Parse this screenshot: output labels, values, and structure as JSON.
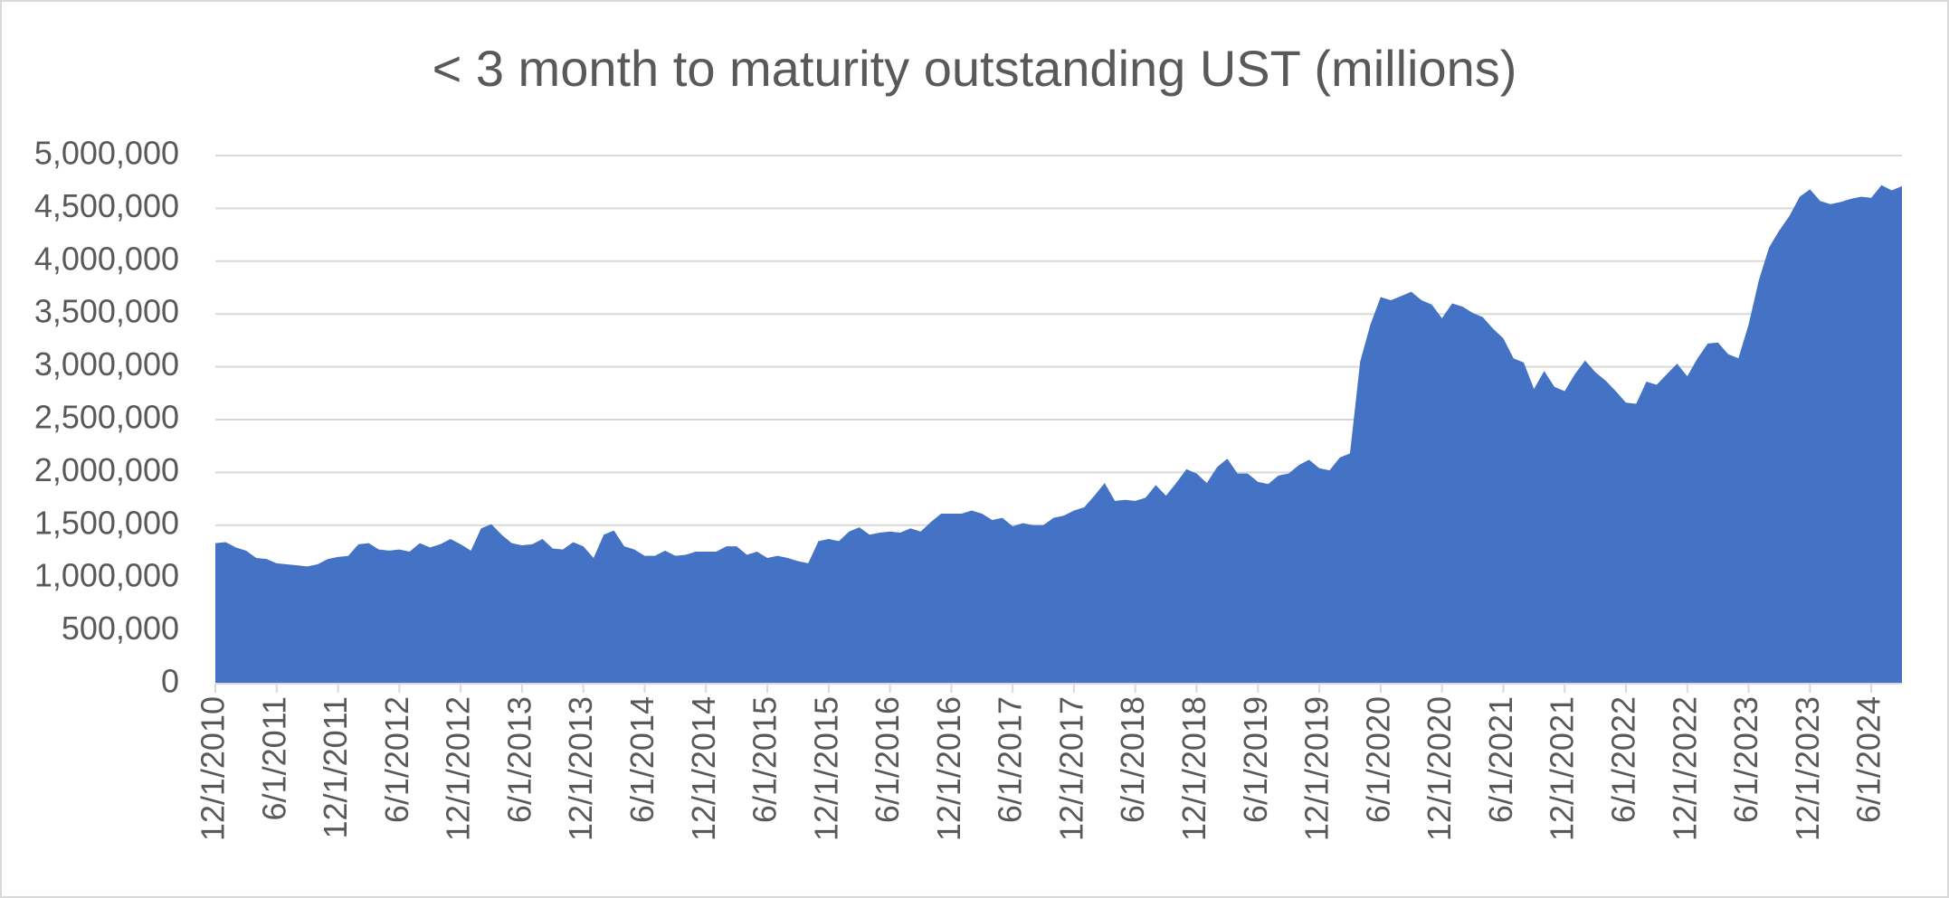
{
  "chart_data": {
    "type": "area",
    "title": "< 3 month to maturity outstanding UST (millions)",
    "color": "#4472c4",
    "grid": true,
    "ylim": [
      0,
      5000000
    ],
    "yticks": [
      0,
      {
        "value": 500000,
        "label": "500,000"
      },
      {
        "value": 1000000,
        "label": "1,000,000"
      },
      {
        "value": 1500000,
        "label": "1,500,000"
      },
      {
        "value": 2000000,
        "label": "2,000,000"
      },
      {
        "value": 2500000,
        "label": "2,500,000"
      },
      {
        "value": 3000000,
        "label": "3,000,000"
      },
      {
        "value": 3500000,
        "label": "3,500,000"
      },
      {
        "value": 4000000,
        "label": "4,000,000"
      },
      {
        "value": 4500000,
        "label": "4,500,000"
      },
      {
        "value": 5000000,
        "label": "5,000,000"
      }
    ],
    "categories": [
      "12/1/2010",
      null,
      null,
      null,
      null,
      null,
      "6/1/2011",
      null,
      null,
      null,
      null,
      null,
      "12/1/2011",
      null,
      null,
      null,
      null,
      null,
      "6/1/2012",
      null,
      null,
      null,
      null,
      null,
      "12/1/2012",
      null,
      null,
      null,
      null,
      null,
      "6/1/2013",
      null,
      null,
      null,
      null,
      null,
      "12/1/2013",
      null,
      null,
      null,
      null,
      null,
      "6/1/2014",
      null,
      null,
      null,
      null,
      null,
      "12/1/2014",
      null,
      null,
      null,
      null,
      null,
      "6/1/2015",
      null,
      null,
      null,
      null,
      null,
      "12/1/2015",
      null,
      null,
      null,
      null,
      null,
      "6/1/2016",
      null,
      null,
      null,
      null,
      null,
      "12/1/2016",
      null,
      null,
      null,
      null,
      null,
      "6/1/2017",
      null,
      null,
      null,
      null,
      null,
      "12/1/2017",
      null,
      null,
      null,
      null,
      null,
      "6/1/2018",
      null,
      null,
      null,
      null,
      null,
      "12/1/2018",
      null,
      null,
      null,
      null,
      null,
      "6/1/2019",
      null,
      null,
      null,
      null,
      null,
      "12/1/2019",
      null,
      null,
      null,
      null,
      null,
      "6/1/2020",
      null,
      null,
      null,
      null,
      null,
      "12/1/2020",
      null,
      null,
      null,
      null,
      null,
      "6/1/2021",
      null,
      null,
      null,
      null,
      null,
      "12/1/2021",
      null,
      null,
      null,
      null,
      null,
      "6/1/2022",
      null,
      null,
      null,
      null,
      null,
      "12/1/2022",
      null,
      null,
      null,
      null,
      null,
      "6/1/2023",
      null,
      null,
      null,
      null,
      null,
      "12/1/2023",
      null,
      null,
      null,
      null,
      null,
      "6/1/2024",
      null,
      null,
      null
    ],
    "values": [
      1330000,
      1340000,
      1290000,
      1260000,
      1190000,
      1180000,
      1140000,
      1130000,
      1120000,
      1110000,
      1130000,
      1180000,
      1200000,
      1210000,
      1320000,
      1330000,
      1270000,
      1260000,
      1270000,
      1250000,
      1330000,
      1290000,
      1320000,
      1370000,
      1320000,
      1260000,
      1470000,
      1510000,
      1410000,
      1330000,
      1310000,
      1320000,
      1370000,
      1280000,
      1270000,
      1340000,
      1300000,
      1190000,
      1410000,
      1450000,
      1300000,
      1270000,
      1210000,
      1210000,
      1260000,
      1210000,
      1220000,
      1250000,
      1250000,
      1250000,
      1300000,
      1300000,
      1220000,
      1250000,
      1190000,
      1210000,
      1190000,
      1160000,
      1140000,
      1350000,
      1370000,
      1350000,
      1440000,
      1480000,
      1410000,
      1430000,
      1440000,
      1430000,
      1470000,
      1440000,
      1530000,
      1610000,
      1610000,
      1610000,
      1640000,
      1610000,
      1550000,
      1570000,
      1490000,
      1520000,
      1500000,
      1500000,
      1570000,
      1590000,
      1640000,
      1670000,
      1780000,
      1900000,
      1730000,
      1740000,
      1730000,
      1760000,
      1880000,
      1780000,
      1900000,
      2030000,
      1990000,
      1900000,
      2050000,
      2130000,
      1990000,
      1990000,
      1910000,
      1890000,
      1970000,
      1990000,
      2070000,
      2120000,
      2040000,
      2020000,
      2140000,
      2180000,
      3050000,
      3400000,
      3660000,
      3630000,
      3670000,
      3710000,
      3630000,
      3590000,
      3460000,
      3600000,
      3570000,
      3510000,
      3470000,
      3360000,
      3270000,
      3080000,
      3040000,
      2790000,
      2960000,
      2810000,
      2770000,
      2930000,
      3060000,
      2950000,
      2870000,
      2770000,
      2660000,
      2650000,
      2860000,
      2830000,
      2930000,
      3030000,
      2910000,
      3080000,
      3220000,
      3230000,
      3120000,
      3080000,
      3400000,
      3820000,
      4130000,
      4290000,
      4430000,
      4610000,
      4680000,
      4570000,
      4540000,
      4560000,
      4590000,
      4610000,
      4600000,
      4720000,
      4670000,
      4710000
    ]
  }
}
